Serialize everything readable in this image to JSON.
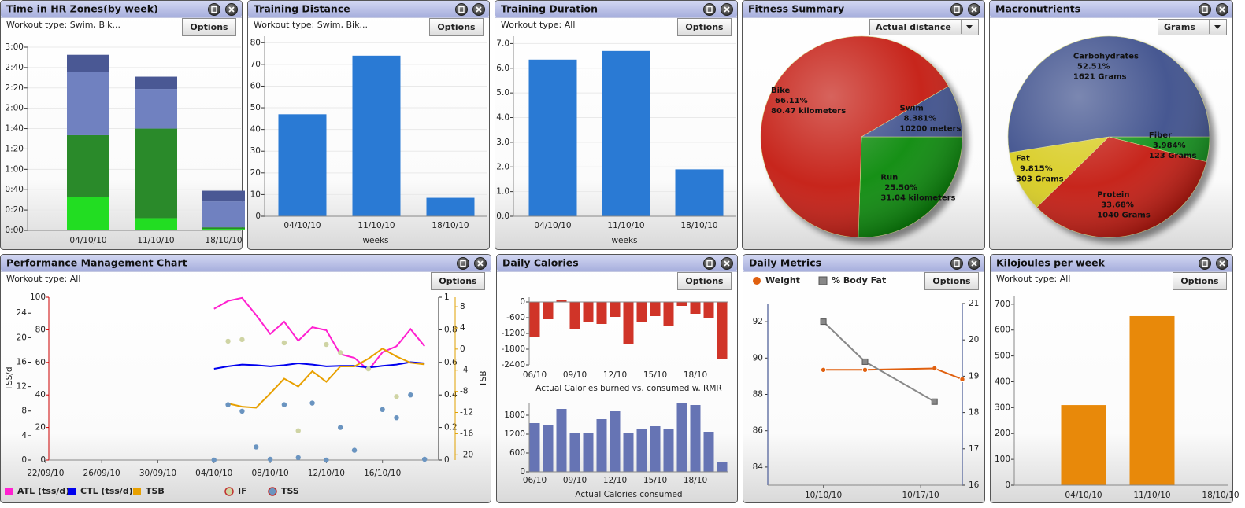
{
  "chart_data": [
    {
      "type": "stacked_bar",
      "title": "Time in HR Zones(by week)",
      "subtitle": "Workout type: Swim, Bik...",
      "button": "Options",
      "categories": [
        "04/10/10",
        "11/10/10",
        "18/10/10"
      ],
      "series": [
        {
          "color": "#22dd22",
          "values": [
            33,
            12,
            1.5
          ]
        },
        {
          "color": "#2a8a2a",
          "values": [
            60.5,
            88,
            1.5
          ]
        },
        {
          "color": "#7081c0",
          "values": [
            62,
            39,
            25.5
          ]
        },
        {
          "color": "#4a5894",
          "values": [
            17,
            12,
            10.5
          ]
        }
      ],
      "ylim": [
        0,
        180
      ],
      "yticks": [
        {
          "value": 0,
          "label": "0:00"
        },
        {
          "value": 20,
          "label": "0:20"
        },
        {
          "value": 40,
          "label": "0:40"
        },
        {
          "value": 60,
          "label": "1:00"
        },
        {
          "value": 80,
          "label": "1:20"
        },
        {
          "value": 100,
          "label": "1:40"
        },
        {
          "value": 120,
          "label": "2:00"
        },
        {
          "value": 140,
          "label": "2:20"
        },
        {
          "value": 160,
          "label": "2:40"
        },
        {
          "value": 180,
          "label": "3:00"
        }
      ],
      "grid": true
    },
    {
      "type": "bar",
      "title": "Training Distance",
      "subtitle": "Workout type: Swim, Bik...",
      "button": "Options",
      "categories": [
        "04/10/10",
        "11/10/10",
        "18/10/10"
      ],
      "values": [
        47,
        74,
        8.5
      ],
      "color": "#2a7ad4",
      "xlabel": "weeks",
      "ylim": [
        0,
        83
      ],
      "yticks": [
        0,
        10,
        20,
        30,
        40,
        50,
        60,
        70,
        80
      ],
      "grid": true
    },
    {
      "type": "bar",
      "title": "Training Duration",
      "subtitle": "Workout type: All",
      "button": "Options",
      "categories": [
        "04/10/10",
        "11/10/10",
        "18/10/10"
      ],
      "values": [
        6.35,
        6.7,
        1.9
      ],
      "color": "#2a7ad4",
      "xlabel": "weeks",
      "ylim": [
        0,
        7.3
      ],
      "yticks": [
        {
          "value": 0,
          "label": "0.0"
        },
        {
          "value": 1,
          "label": "1.0"
        },
        {
          "value": 2,
          "label": "2.0"
        },
        {
          "value": 3,
          "label": "3.0"
        },
        {
          "value": 4,
          "label": "4.0"
        },
        {
          "value": 5,
          "label": "5.0"
        },
        {
          "value": 6,
          "label": "6.0"
        },
        {
          "value": 7,
          "label": "7.0"
        }
      ],
      "grid": true
    },
    {
      "type": "pie",
      "title": "Fitness Summary",
      "dropdown": "Actual distance",
      "labels": [
        "Run",
        "Bike",
        "Swim"
      ],
      "values": [
        25.5,
        66.11,
        8.381
      ],
      "value_labels": [
        "25.50%",
        "66.11%",
        "8.381%"
      ],
      "details": [
        "31.04 kilometers",
        "80.47 kilometers",
        "10200 meters"
      ],
      "colors": [
        "#0a8a0a",
        "#c41a10",
        "#3d4f8c"
      ]
    },
    {
      "type": "pie",
      "title": "Macronutrients",
      "dropdown": "Grams",
      "labels": [
        "Fiber",
        "Protein",
        "Fat",
        "Carbohydrates"
      ],
      "values": [
        3.984,
        33.68,
        9.815,
        52.51
      ],
      "value_labels": [
        "3.984%",
        "33.68%",
        "9.815%",
        "52.51%"
      ],
      "details": [
        "123 Grams",
        "1040 Grams",
        "303 Grams",
        "1621 Grams"
      ],
      "colors": [
        "#10901a",
        "#c41a10",
        "#d8cc20",
        "#3d4f8c"
      ]
    },
    {
      "type": "combo",
      "title": "Performance Management Chart",
      "subtitle": "Workout type: All",
      "button": "Options",
      "date_format": "dd/mm/yy",
      "ylabel": "TSS/d",
      "y4label": "TSB",
      "x": [
        "04/10/10",
        "05/10/10",
        "06/10/10",
        "07/10/10",
        "08/10/10",
        "09/10/10",
        "10/10/10",
        "11/10/10",
        "12/10/10",
        "13/10/10",
        "14/10/10",
        "15/10/10",
        "16/10/10",
        "17/10/10",
        "18/10/10",
        "19/10/10"
      ],
      "xlim": [
        "21/09/10",
        "20/10/10"
      ],
      "xticks": [
        "22/09/10",
        "26/09/10",
        "30/09/10",
        "04/10/10",
        "08/10/10",
        "12/10/10",
        "16/10/10"
      ],
      "ylim": [
        0,
        26.6
      ],
      "yticks": [
        0,
        4,
        8,
        12,
        16,
        20,
        24
      ],
      "y2lim": [
        0,
        1
      ],
      "y2ticks": [
        0,
        0.2,
        0.4,
        0.6,
        0.8,
        1
      ],
      "y3lim": [
        0,
        100
      ],
      "y3ticks": [
        0,
        20,
        40,
        60,
        80,
        100
      ],
      "y4lim": [
        -21,
        9.8
      ],
      "y4ticks": [
        -20,
        -16,
        -12,
        -8,
        -4,
        0,
        4,
        8
      ],
      "series": [
        {
          "name": "ATL (tss/d)",
          "color": "#ff20d0",
          "mode": "lines",
          "values": [
            24.7,
            26.0,
            26.5,
            23.7,
            20.6,
            22.6,
            19.5,
            21.7,
            21.2,
            17.3,
            16.7,
            14.7,
            17.6,
            18.6,
            21.4,
            18.6
          ]
        },
        {
          "name": "CTL (tss/d)",
          "color": "#0000ee",
          "mode": "lines",
          "values": [
            14.9,
            15.3,
            15.6,
            15.5,
            15.3,
            15.5,
            15.8,
            15.6,
            15.3,
            15.4,
            15.4,
            15.1,
            15.4,
            15.6,
            16.0,
            15.8
          ]
        },
        {
          "name": "TSB",
          "color": "#e8a000",
          "mode": "lines",
          "axis": "y4",
          "values": [
            null,
            -10.3,
            -10.9,
            -11.1,
            -8.4,
            -5.6,
            -7.1,
            -4.2,
            -6.2,
            -3.3,
            -3.3,
            -1.8,
            0.1,
            -1.4,
            -2.6,
            -2.9
          ]
        },
        {
          "name": "IF",
          "color": "#cfd4a4",
          "mode": "markers",
          "axis": "y2",
          "values": [
            null,
            0.73,
            0.74,
            null,
            null,
            0.72,
            0.18,
            null,
            0.71,
            0.66,
            null,
            0.56,
            null,
            0.39,
            null,
            null
          ]
        },
        {
          "name": "TSS",
          "color": "#6a94c0",
          "mode": "markers",
          "axis": "y3",
          "values": [
            0,
            34,
            30,
            8,
            0.5,
            34,
            1.5,
            35,
            0,
            20,
            6,
            null,
            31,
            26,
            40,
            0.5
          ]
        }
      ]
    },
    {
      "type": "bar",
      "title": "Daily Calories",
      "button": "Options",
      "categories": [
        "06/10",
        null,
        null,
        "09/10",
        null,
        null,
        "12/10",
        null,
        null,
        "15/10",
        null,
        null,
        "18/10",
        null,
        null
      ],
      "values": [
        -1320,
        -660,
        90,
        -1050,
        -750,
        -840,
        -570,
        -1620,
        -780,
        -540,
        -930,
        -150,
        -450,
        -630,
        -2190
      ],
      "color": "#d03428",
      "xlabel": "Actual Calories burned vs. consumed w. RMR",
      "ylim": [
        -2400,
        180
      ],
      "yticks": [
        0,
        -600,
        -1200,
        -1800,
        -2400
      ],
      "grid": false
    },
    {
      "type": "bar",
      "categories": [
        "06/10",
        null,
        null,
        "09/10",
        null,
        null,
        "12/10",
        null,
        null,
        "15/10",
        null,
        null,
        "18/10",
        null,
        null
      ],
      "values": [
        1550,
        1500,
        2000,
        1225,
        1225,
        1675,
        1925,
        1250,
        1350,
        1450,
        1350,
        2175,
        2125,
        1275,
        300
      ],
      "color": "#6674b4",
      "xlabel": "Actual Calories consumed",
      "ylim": [
        0,
        2200
      ],
      "yticks": [
        0,
        600,
        1200,
        1800
      ],
      "grid": false
    },
    {
      "type": "line",
      "title": "Daily Metrics",
      "button": "Options",
      "date_format": "mm/dd/yy",
      "x": [
        "10/10/10",
        "10/13/10",
        "10/18/10",
        "10/20/10"
      ],
      "xlim": [
        "10/06/10",
        "10/20/10"
      ],
      "xticks": [
        "10/10/10",
        "10/17/10"
      ],
      "ylim": [
        83,
        93
      ],
      "yticks": [
        84,
        86,
        88,
        90,
        92
      ],
      "y2lim": [
        16,
        21
      ],
      "y2ticks": [
        16,
        17,
        18,
        19,
        20,
        21
      ],
      "series": [
        {
          "name": "Weight",
          "color": "#e0600f",
          "mode": "lines+markers",
          "marker": "circle",
          "values": [
            89.35,
            89.35,
            89.43,
            88.83
          ]
        },
        {
          "name": "% Body Fat",
          "color": "#888888",
          "mode": "lines+markers",
          "marker": "square",
          "axis": "y2",
          "values": [
            20.5,
            19.4,
            18.3,
            null
          ]
        }
      ]
    },
    {
      "type": "bar",
      "title": "Kilojoules per week",
      "subtitle": "Workout type: All",
      "button": "Options",
      "categories": [
        "04/10/10",
        "11/10/10",
        "18/10/10"
      ],
      "values": [
        310,
        654,
        0
      ],
      "color": "#e8890a",
      "ylim": [
        0,
        733
      ],
      "yticks": [
        0,
        100,
        200,
        300,
        400,
        500,
        600,
        700
      ],
      "grid": false
    }
  ]
}
